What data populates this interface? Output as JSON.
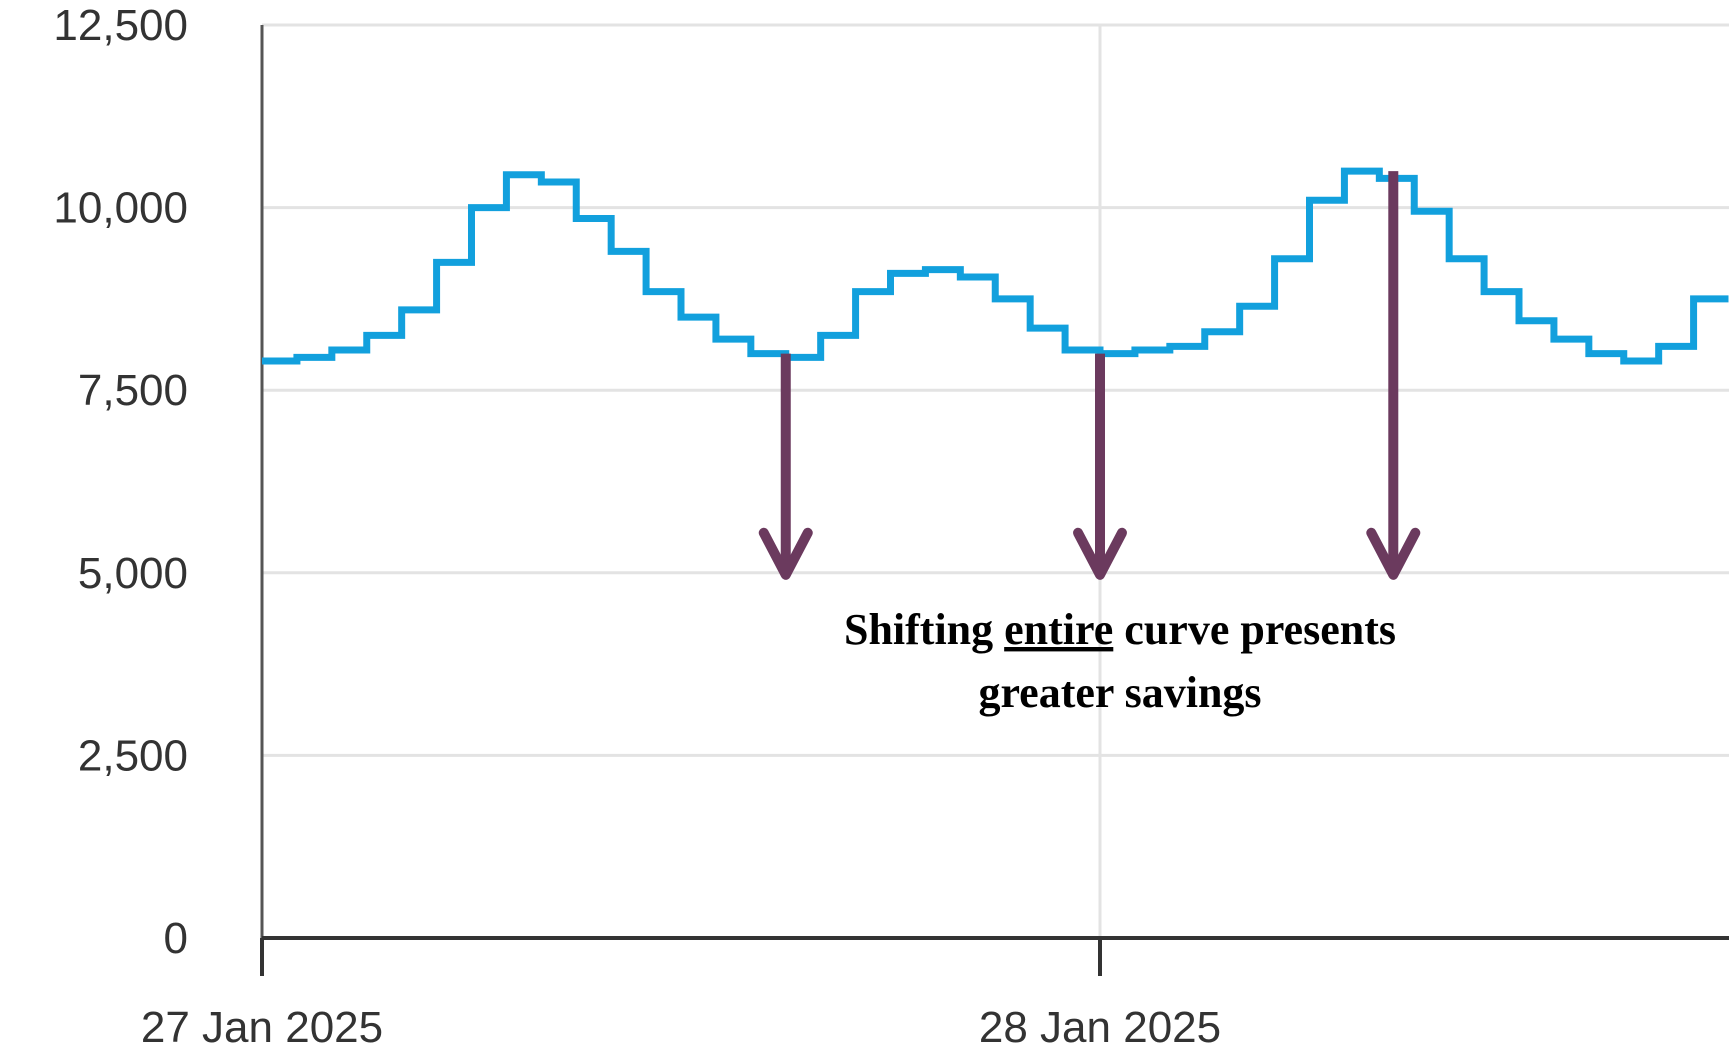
{
  "chart_data": {
    "type": "line",
    "step": true,
    "title": "",
    "xlabel": "",
    "ylabel": "",
    "ylim": [
      0,
      12500
    ],
    "y_ticks": [
      "0",
      "2,500",
      "5,000",
      "7,500",
      "10,000",
      "12,500"
    ],
    "x_tick_labels": [
      "27 Jan 2025",
      "28 Jan 2025"
    ],
    "x_unit": "hour of 27 Jan 2025",
    "grid": true,
    "colors": {
      "series": "#12a0dd",
      "arrow": "#6b3a5e"
    },
    "series": [
      {
        "x": [
          0,
          1,
          2,
          3,
          4,
          5,
          6,
          7,
          8,
          9,
          10,
          11,
          12,
          13,
          14,
          15,
          16,
          17,
          18,
          19,
          20,
          21,
          22,
          23,
          24,
          25,
          26,
          27,
          28,
          29,
          30,
          31,
          32,
          33,
          34,
          35,
          36,
          37,
          38,
          39,
          40,
          41
        ],
        "values": [
          7900,
          7950,
          8050,
          8250,
          8600,
          9250,
          10000,
          10450,
          10350,
          9850,
          9400,
          8850,
          8500,
          8200,
          8000,
          7950,
          8250,
          8850,
          9100,
          9150,
          9050,
          8750,
          8350,
          8050,
          8000,
          8050,
          8100,
          8300,
          8650,
          9300,
          10100,
          10500,
          10400,
          9950,
          9300,
          8850,
          8450,
          8200,
          8000,
          7900,
          8100,
          8750
        ]
      }
    ],
    "arrows": [
      {
        "x": 15,
        "from": 8000,
        "to": 5000
      },
      {
        "x": 24,
        "from": 8000,
        "to": 5000
      },
      {
        "x": 32.4,
        "from": 10500,
        "to": 5000
      }
    ],
    "annotation": {
      "line1_before": "Shifting ",
      "line1_underlined": "entire",
      "line1_after": " curve presents",
      "line2": "greater savings"
    }
  }
}
